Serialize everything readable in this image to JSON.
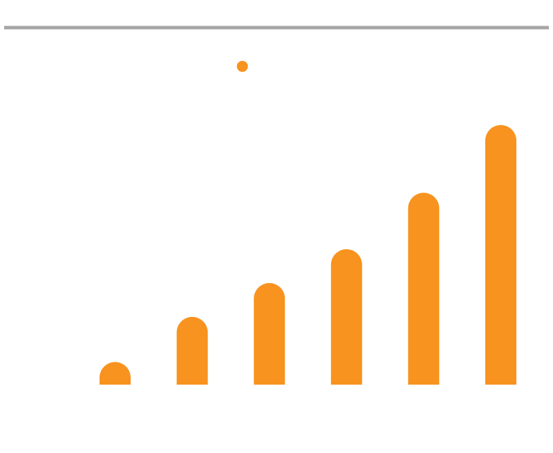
{
  "colors": {
    "bar": "#F7931E",
    "rule": "#A6A6A6",
    "background": "#FFFFFF"
  },
  "chart_data": {
    "type": "bar",
    "title": "",
    "xlabel": "",
    "ylabel": "",
    "categories": [
      "",
      "",
      "",
      "",
      "",
      ""
    ],
    "values": [
      1,
      3,
      4.5,
      6,
      8.5,
      11.5
    ],
    "ylim": [
      0,
      14.5
    ],
    "grid": false,
    "legend": "none",
    "marker_dot": {
      "x": 1.65,
      "y": 14.1
    }
  }
}
